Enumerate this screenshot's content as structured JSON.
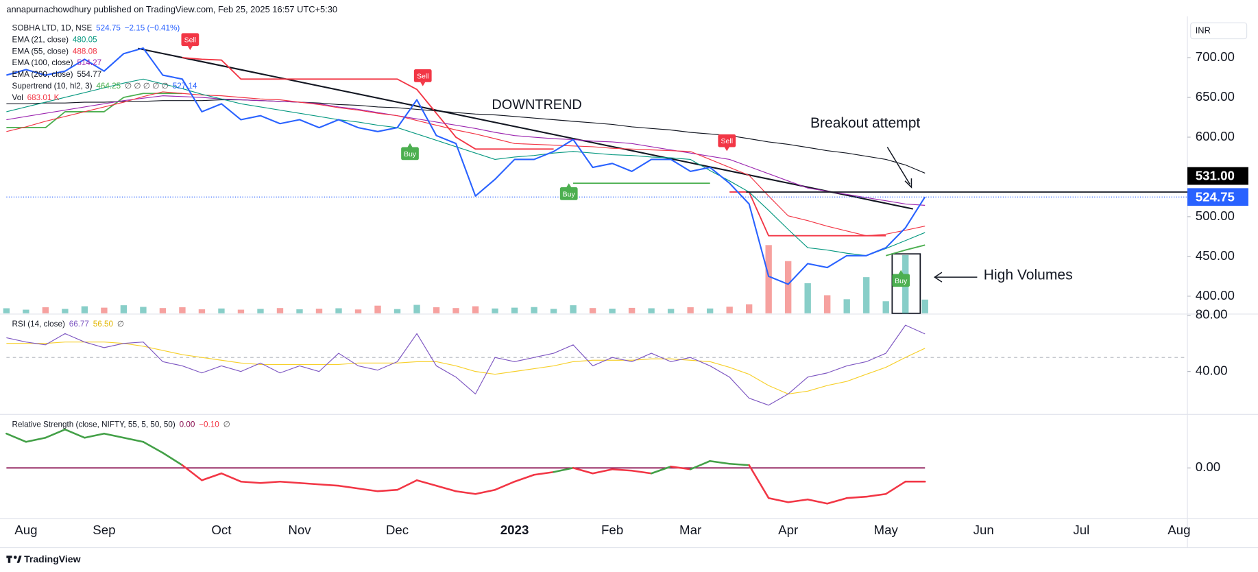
{
  "header": "annapurnachowdhury published on TradingView.com, Feb 25, 2025 16:57 UTC+5:30",
  "footer": "TradingView",
  "chart_data": [
    {
      "type": "line",
      "currency": "INR",
      "categories": [
        null,
        "Aug",
        null,
        null,
        null,
        "Sep",
        null,
        null,
        null,
        null,
        null,
        "Oct",
        null,
        null,
        null,
        "Nov",
        null,
        null,
        null,
        null,
        "Dec",
        null,
        null,
        null,
        null,
        null,
        "2023",
        null,
        null,
        null,
        null,
        "Feb",
        null,
        null,
        null,
        "Mar",
        null,
        null,
        null,
        null,
        "Apr",
        null,
        null,
        null,
        null,
        "May",
        null,
        null,
        null,
        null,
        "Jun",
        null,
        null,
        null,
        null,
        "Jul",
        null,
        null,
        null,
        null,
        "Aug"
      ],
      "ylim": [
        378.5,
        754
      ],
      "yticks": [
        {
          "value": 400,
          "label": "400.00"
        },
        {
          "value": 450,
          "label": "450.00"
        },
        {
          "value": 500,
          "label": "500.00"
        },
        {
          "value": 600,
          "label": "600.00"
        },
        {
          "value": 650,
          "label": "650.00"
        },
        {
          "value": 700,
          "label": "700.00"
        }
      ],
      "series": [
        {
          "name": "SOBHA LTD, 1D, NSE",
          "color": "#2962ff",
          "legend_values": [
            "524.75",
            "−2.15 (−0.41%)"
          ],
          "values": [
            678,
            685,
            678,
            683,
            698,
            683,
            705,
            712,
            678,
            673,
            632,
            642,
            622,
            627,
            617,
            622,
            612,
            622,
            612,
            607,
            612,
            647,
            602,
            592,
            526,
            547,
            572,
            572,
            582,
            597,
            562,
            567,
            557,
            572,
            572,
            557,
            562,
            542,
            516,
            425,
            415,
            441,
            436,
            451,
            451,
            461,
            486,
            524.75,
            null,
            null,
            null,
            null,
            null,
            null,
            null,
            null,
            null,
            null,
            null,
            null,
            null
          ]
        },
        {
          "name": "EMA (21, close)",
          "color": "#089981",
          "legend_values": [
            "480.05"
          ],
          "values": [
            632,
            638,
            644,
            650,
            656,
            662,
            668,
            673,
            667,
            661,
            654,
            648,
            642,
            638,
            634,
            630,
            626,
            622,
            619,
            615,
            612,
            604,
            596,
            588,
            580,
            572,
            575,
            577,
            580,
            582,
            580,
            578,
            577,
            575,
            574,
            572,
            558,
            545,
            531,
            508,
            484,
            461,
            458,
            454,
            451,
            460,
            470,
            480.05,
            null,
            null,
            null,
            null,
            null,
            null,
            null,
            null,
            null,
            null,
            null,
            null,
            null
          ]
        },
        {
          "name": "EMA (55, close)",
          "color": "#f23645",
          "legend_values": [
            "488.08"
          ],
          "values": [
            607,
            613,
            620,
            626,
            632,
            638,
            644,
            651,
            657,
            655,
            653,
            652,
            650,
            648,
            647,
            644,
            641,
            637,
            634,
            630,
            627,
            621,
            615,
            609,
            604,
            598,
            592,
            591,
            590,
            589,
            588,
            586,
            585,
            584,
            583,
            582,
            572,
            562,
            552,
            526,
            501,
            495,
            488,
            482,
            476,
            478,
            483,
            488.08,
            null,
            null,
            null,
            null,
            null,
            null,
            null,
            null,
            null,
            null,
            null,
            null,
            null
          ]
        },
        {
          "name": "EMA (100, close)",
          "color": "#9c27b0",
          "legend_values": [
            "514.27"
          ],
          "values": [
            622,
            626,
            630,
            634,
            638,
            642,
            646,
            649,
            652,
            651,
            650,
            648,
            647,
            646,
            645,
            644,
            642,
            638,
            635,
            631,
            627,
            623,
            619,
            615,
            611,
            606,
            602,
            600,
            598,
            597,
            595,
            594,
            592,
            588,
            584,
            580,
            576,
            572,
            563,
            554,
            545,
            536,
            532,
            528,
            524,
            520,
            516,
            514.27,
            null,
            null,
            null,
            null,
            null,
            null,
            null,
            null,
            null,
            null,
            null,
            null,
            null
          ]
        },
        {
          "name": "EMA (200, close)",
          "color": "#131722",
          "legend_values": [
            "554.77"
          ],
          "values": [
            642,
            642,
            643,
            643,
            644,
            644,
            645,
            645,
            646,
            646,
            646,
            647,
            647,
            646,
            645,
            644,
            643,
            641,
            640,
            638,
            637,
            635,
            633,
            631,
            629,
            628,
            626,
            624,
            622,
            620,
            618,
            616,
            613,
            611,
            609,
            606,
            604,
            602,
            598,
            594,
            591,
            587,
            583,
            580,
            576,
            572,
            565,
            554.77,
            null,
            null,
            null,
            null,
            null,
            null,
            null,
            null,
            null,
            null,
            null,
            null,
            null
          ]
        }
      ],
      "supertrend": {
        "name": "Supertrend (10, hl2, 3)",
        "legend_values": [
          "464.25",
          "∅ ∅ ∅ ∅ ∅",
          "527.14"
        ],
        "legend_colors": [
          "#4caf50",
          "#555555",
          "#2962ff"
        ],
        "up": {
          "color": "#4caf50",
          "values": [
            612,
            612,
            612,
            632,
            632,
            632,
            650,
            655,
            655,
            655,
            null,
            null,
            null,
            null,
            null,
            null,
            null,
            null,
            null,
            null,
            null,
            null,
            null,
            null,
            null,
            null,
            null,
            null,
            null,
            542,
            542,
            542,
            542,
            542,
            542,
            542,
            542,
            null,
            null,
            null,
            null,
            null,
            null,
            null,
            null,
            451,
            458,
            464.25,
            null,
            null,
            null,
            null,
            null,
            null,
            null,
            null,
            null,
            null,
            null,
            null,
            null
          ]
        },
        "down": {
          "color": "#f23645",
          "values": [
            null,
            null,
            null,
            null,
            null,
            null,
            null,
            null,
            null,
            700,
            698,
            697,
            673,
            673,
            673,
            673,
            673,
            673,
            673,
            673,
            673,
            660,
            630,
            600,
            585,
            585,
            585,
            585,
            585,
            null,
            null,
            null,
            null,
            null,
            null,
            null,
            null,
            531,
            531,
            476,
            476,
            476,
            476,
            476,
            476,
            476,
            null,
            null,
            null,
            null,
            null,
            null,
            null,
            null,
            null,
            null,
            null,
            null,
            null,
            null,
            null
          ]
        }
      },
      "volume": {
        "name": "Vol",
        "legend_values": [
          "683.01 K"
        ],
        "legend_colors": [
          "#f23645"
        ],
        "up_color": "rgba(38,166,154,0.55)",
        "down_color": "rgba(239,83,80,0.55)",
        "values": [
          250,
          180,
          300,
          220,
          350,
          280,
          400,
          320,
          260,
          300,
          200,
          240,
          180,
          220,
          260,
          200,
          230,
          250,
          190,
          380,
          210,
          420,
          300,
          260,
          350,
          240,
          280,
          310,
          220,
          400,
          260,
          230,
          270,
          250,
          220,
          300,
          240,
          330,
          450,
          3400,
          2600,
          1500,
          900,
          700,
          1800,
          600,
          2900,
          683.01,
          null,
          null,
          null,
          null,
          null,
          null,
          null,
          null,
          null,
          null,
          null,
          null,
          null
        ]
      },
      "price_labels": [
        {
          "value": 531,
          "label": "531.00",
          "color": "#000000"
        },
        {
          "value": 524.75,
          "label": "524.75",
          "color": "#2962ff"
        }
      ],
      "annotations": [
        "Sell",
        "Sell",
        "Buy",
        "Buy",
        "Sell",
        "Buy",
        "DOWNTREND",
        "Breakout attempt",
        "High Volumes"
      ]
    },
    {
      "type": "line",
      "title": "RSI (14, close)",
      "legend_values": [
        "66.77",
        "56.50",
        "∅"
      ],
      "legend_colors": [
        "#7e57c2",
        "#e2b600",
        "#555555"
      ],
      "ylim": [
        10,
        80.3
      ],
      "yticks": [
        {
          "value": 80,
          "label": "80.00"
        },
        {
          "value": 40,
          "label": "40.00"
        }
      ],
      "midline": 50,
      "series": [
        {
          "color": "#7e57c2",
          "values": [
            64,
            61,
            59,
            67,
            61,
            57,
            60,
            61,
            47,
            44,
            39,
            44,
            40,
            46,
            39,
            44,
            40,
            53,
            44,
            41,
            47,
            67,
            44,
            36,
            24,
            50,
            47,
            50,
            53,
            59,
            44,
            50,
            47,
            53,
            47,
            50,
            44,
            36,
            21,
            16,
            24,
            36,
            39,
            44,
            47,
            53,
            73,
            66.77,
            null,
            null,
            null,
            null,
            null,
            null,
            null,
            null,
            null,
            null,
            null,
            null,
            null
          ]
        },
        {
          "color": "#f7d02c",
          "values": [
            60,
            60,
            60,
            61,
            61,
            61,
            60,
            58,
            55,
            52,
            50,
            48,
            46,
            45,
            45,
            45,
            45,
            45,
            46,
            46,
            46,
            47,
            47,
            44,
            40,
            38,
            40,
            42,
            44,
            47,
            48,
            48,
            48,
            49,
            49,
            48,
            47,
            43,
            38,
            30,
            24,
            26,
            30,
            33,
            38,
            43,
            50,
            56.5,
            null,
            null,
            null,
            null,
            null,
            null,
            null,
            null,
            null,
            null,
            null,
            null,
            null
          ]
        }
      ]
    },
    {
      "type": "line",
      "title": "Relative Strength (close, NIFTY, 55, 5, 50, 50)",
      "legend_values": [
        "0.00",
        "−0.10",
        "∅"
      ],
      "legend_colors": [
        "#880e4f",
        "#f23645",
        "#555555"
      ],
      "ylim": [
        -0.365,
        0.39
      ],
      "yticks": [
        {
          "value": 0,
          "label": "0.00"
        }
      ],
      "zero_color": "#880e4f",
      "series": [
        {
          "color_positive": "#43a047",
          "color_negative": "#f23645",
          "values": [
            0.25,
            0.19,
            0.22,
            0.28,
            0.22,
            0.25,
            0.22,
            0.19,
            0.11,
            0.02,
            -0.09,
            -0.04,
            -0.1,
            -0.11,
            -0.1,
            -0.11,
            -0.12,
            -0.13,
            -0.15,
            -0.17,
            -0.16,
            -0.09,
            -0.13,
            -0.17,
            -0.19,
            -0.16,
            -0.1,
            -0.05,
            -0.03,
            0,
            -0.04,
            -0.01,
            -0.02,
            -0.04,
            0.01,
            -0.01,
            0.05,
            0.03,
            0.02,
            -0.22,
            -0.25,
            -0.23,
            -0.26,
            -0.22,
            -0.21,
            -0.19,
            -0.1,
            -0.1,
            null,
            null,
            null,
            null,
            null,
            null,
            null,
            null,
            null,
            null,
            null,
            null,
            null
          ]
        }
      ]
    }
  ]
}
